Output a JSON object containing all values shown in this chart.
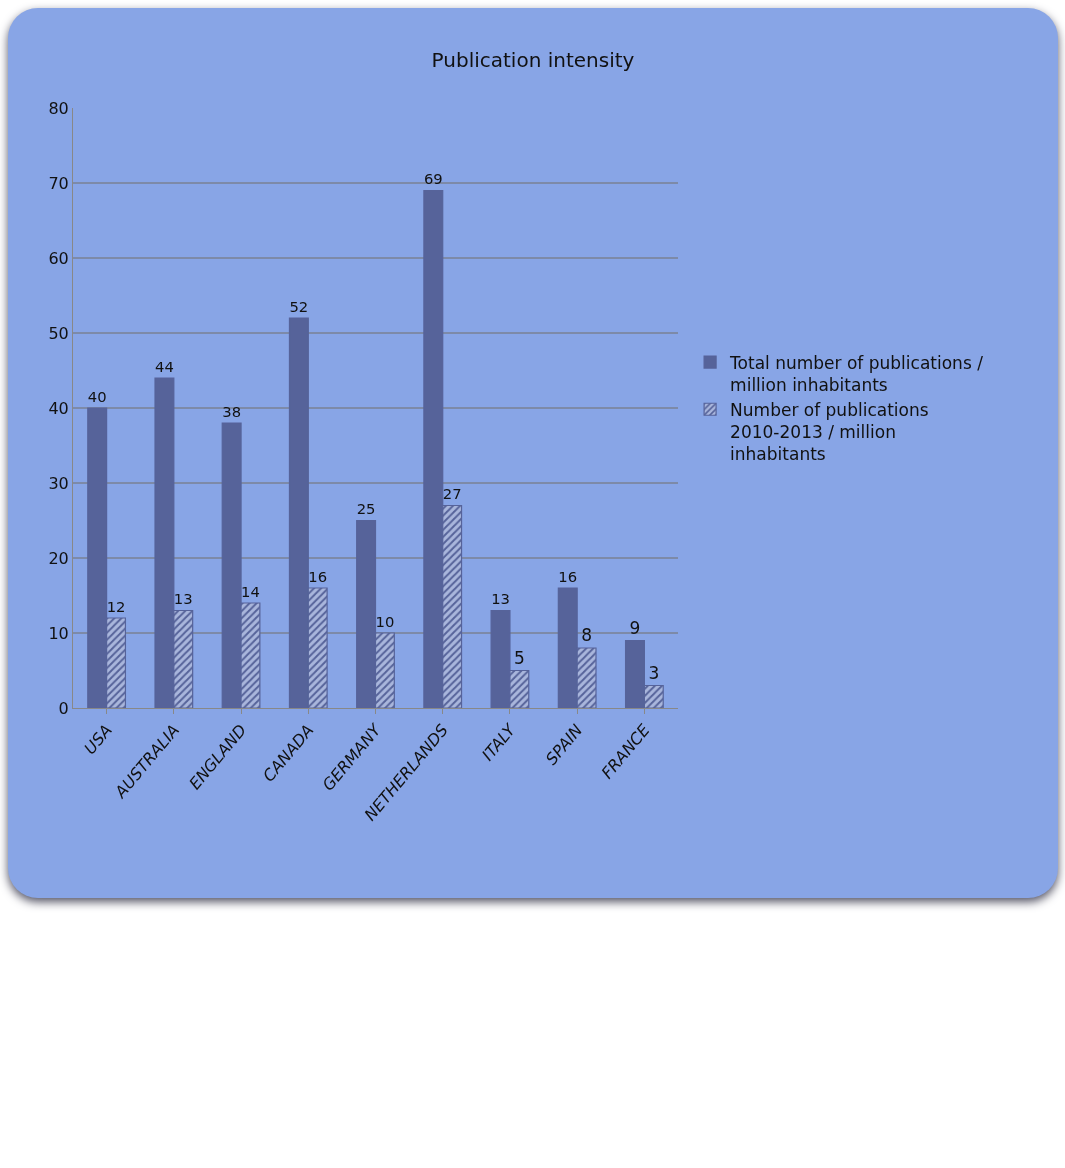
{
  "chart_data": {
    "type": "bar",
    "title": "Publication intensity",
    "categories": [
      "USA",
      "AUSTRALIA",
      "ENGLAND",
      "CANADA",
      "GERMANY",
      "NETHERLANDS",
      "ITALY",
      "SPAIN",
      "FRANCE"
    ],
    "series": [
      {
        "name": "Total number of publications / million inhabitants",
        "color": "#56639a",
        "values": [
          40,
          44,
          38,
          52,
          25,
          69,
          13,
          16,
          9
        ]
      },
      {
        "name": "Number of publications 2010-2013 / million inhabitants",
        "color": "#56639a",
        "values": [
          12,
          13,
          14,
          16,
          10,
          27,
          5,
          8,
          3
        ]
      }
    ],
    "ylim": [
      0,
      80
    ],
    "yticks": [
      0,
      10,
      20,
      30,
      40,
      50,
      60,
      70,
      80
    ],
    "grid": "y",
    "legend": "right",
    "data_labels": true
  }
}
